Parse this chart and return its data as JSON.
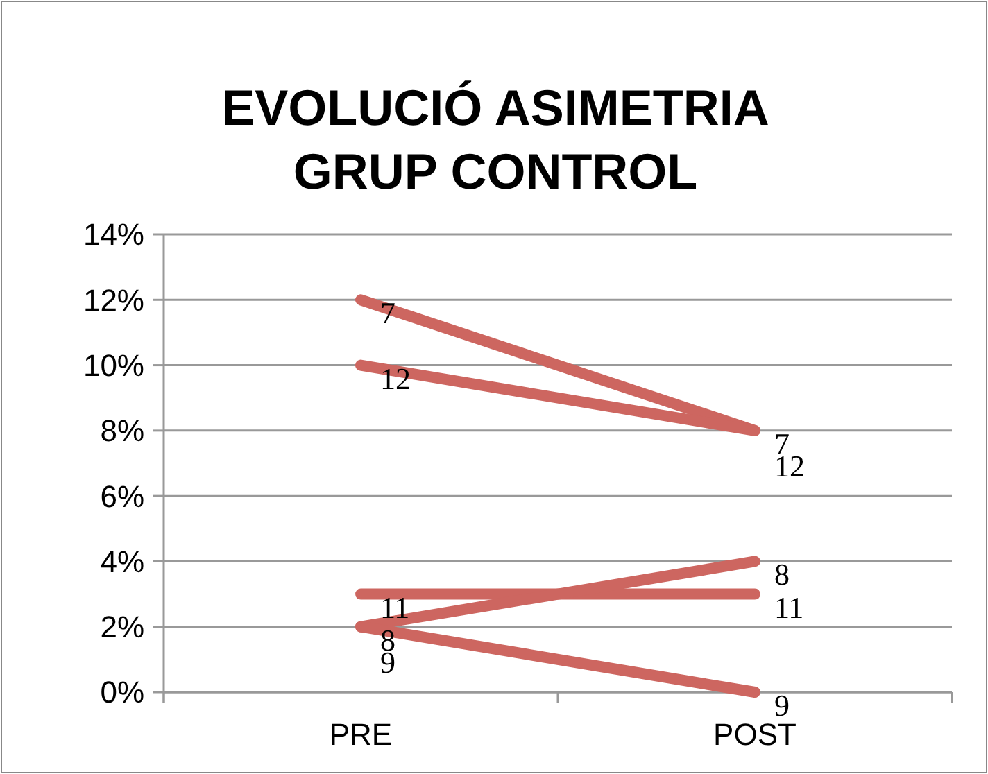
{
  "chart_data": {
    "type": "line",
    "title": "EVOLUCIÓ ASIMETRIA GRUP CONTROL",
    "categories": [
      "PRE",
      "POST"
    ],
    "series": [
      {
        "name": "7",
        "color": "#cd6660",
        "values": [
          12,
          8
        ]
      },
      {
        "name": "12",
        "color": "#cd6660",
        "values": [
          10,
          8
        ]
      },
      {
        "name": "11",
        "color": "#cd6660",
        "values": [
          3,
          3
        ]
      },
      {
        "name": "8",
        "color": "#cd6660",
        "values": [
          2,
          4
        ]
      },
      {
        "name": "9",
        "color": "#cd6660",
        "values": [
          2,
          0
        ]
      }
    ],
    "ylim": [
      0,
      14
    ],
    "yticks": [
      {
        "value": 0,
        "label": "0%"
      },
      {
        "value": 2,
        "label": "2%"
      },
      {
        "value": 4,
        "label": "4%"
      },
      {
        "value": 6,
        "label": "6%"
      },
      {
        "value": 8,
        "label": "8%"
      },
      {
        "value": 10,
        "label": "10%"
      },
      {
        "value": 12,
        "label": "12%"
      },
      {
        "value": 14,
        "label": "14%"
      }
    ],
    "grid": "y",
    "line_style": "solid"
  }
}
